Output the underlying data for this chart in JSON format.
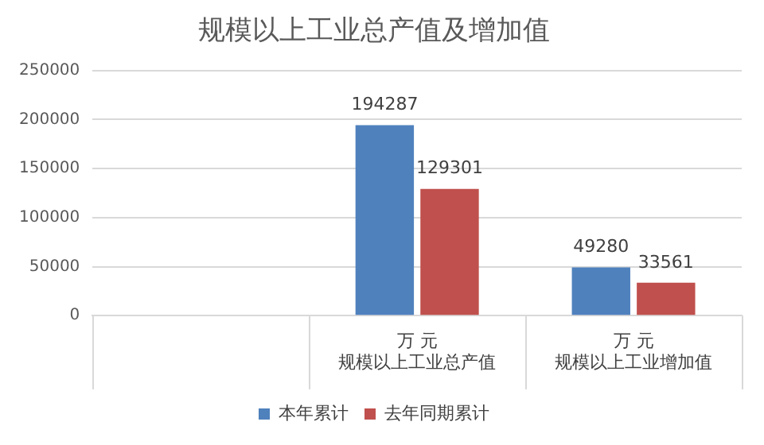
{
  "chart_data": {
    "type": "bar",
    "title": "规模以上工业总产值及增加值",
    "categories": [
      null,
      "规模以上工业总产值",
      "规模以上工业增加值"
    ],
    "annotations": [
      "万 元",
      "万 元"
    ],
    "series": [
      {
        "name": "本年累计",
        "color": "#4f81bd",
        "values": [
          null,
          194287,
          49280
        ]
      },
      {
        "name": "去年同期累计",
        "color": "#c0504d",
        "values": [
          null,
          129301,
          33561
        ]
      }
    ],
    "ylim": [
      0,
      250000
    ],
    "yticks": [
      0,
      50000,
      100000,
      150000,
      200000,
      250000
    ],
    "grid": "y",
    "legend": "bottom",
    "data_labels": true
  }
}
